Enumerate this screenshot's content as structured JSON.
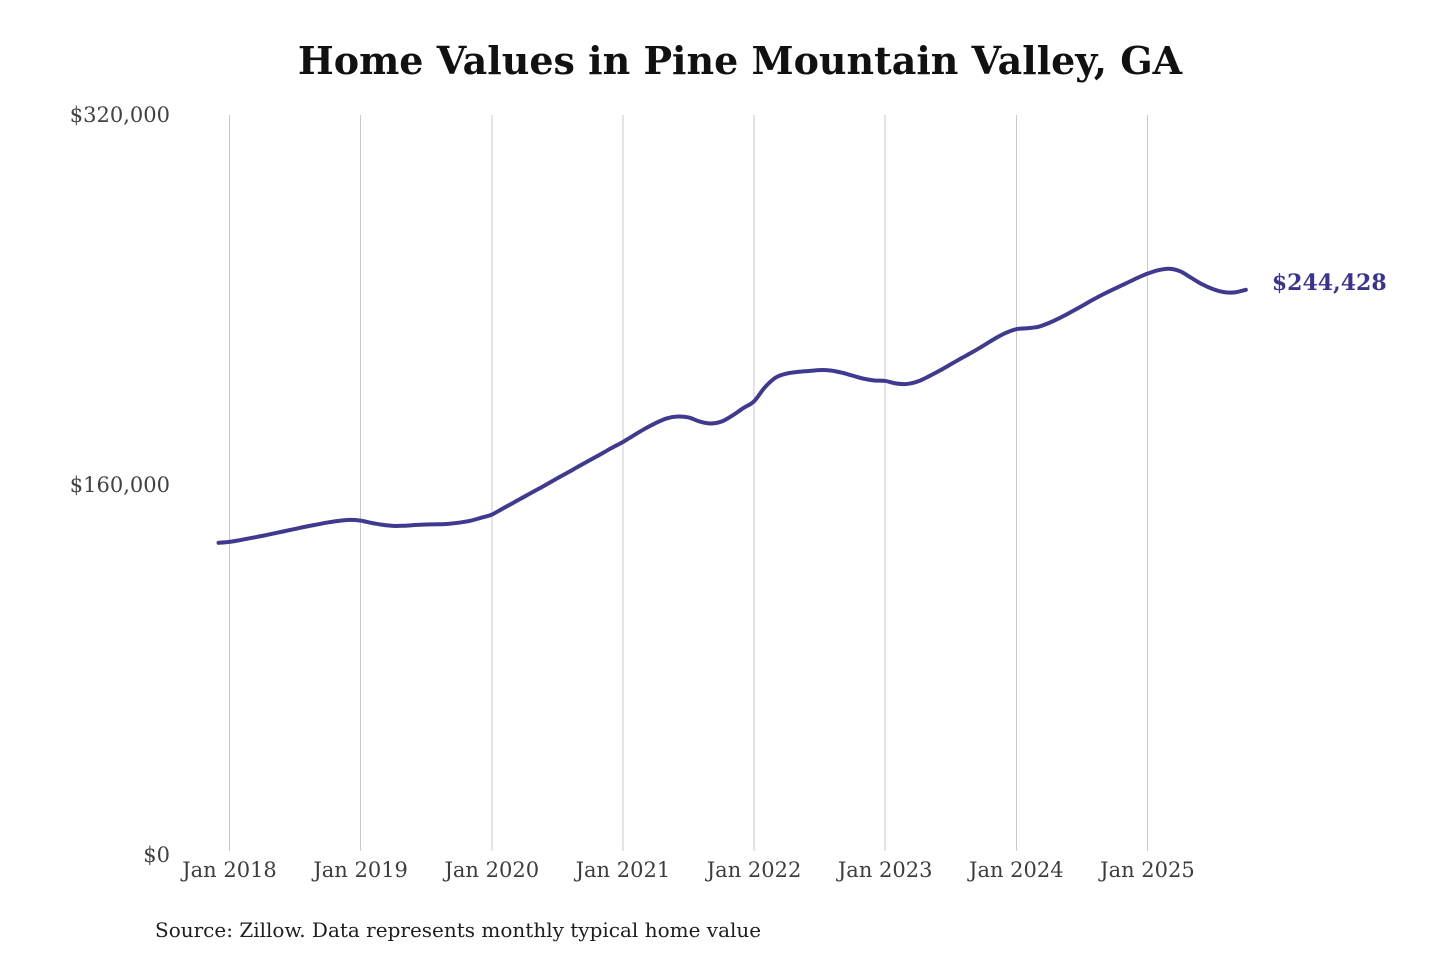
{
  "chart_data": {
    "type": "line",
    "title": "Home Values in Pine Mountain Valley, GA",
    "source_note": "Source: Zillow. Data represents monthly typical home value",
    "end_label": "$244,428",
    "latest_value": 244428,
    "xlabel": "",
    "ylabel": "",
    "ylim": [
      0,
      320000
    ],
    "grid": "vertical",
    "legend": "none",
    "y_ticks": [
      {
        "value": 0,
        "label": "$0"
      },
      {
        "value": 160000,
        "label": "$160,000"
      },
      {
        "value": 320000,
        "label": "$320,000"
      }
    ],
    "x_ticks": [
      {
        "year": 2018,
        "label": "Jan 2018"
      },
      {
        "year": 2019,
        "label": "Jan 2019"
      },
      {
        "year": 2020,
        "label": "Jan 2020"
      },
      {
        "year": 2021,
        "label": "Jan 2021"
      },
      {
        "year": 2022,
        "label": "Jan 2022"
      },
      {
        "year": 2023,
        "label": "Jan 2023"
      },
      {
        "year": 2024,
        "label": "Jan 2024"
      },
      {
        "year": 2025,
        "label": "Jan 2025"
      }
    ],
    "series": [
      {
        "name": "Monthly typical home value",
        "frequency": "monthly",
        "start_month": "2017-12",
        "end_month": "2025-10",
        "values": [
          135000,
          135400,
          136200,
          137100,
          138000,
          139000,
          140000,
          141000,
          142000,
          142900,
          143800,
          144500,
          144900,
          144600,
          143600,
          142800,
          142300,
          142400,
          142700,
          142900,
          143000,
          143200,
          143700,
          144500,
          145800,
          147200,
          149800,
          152400,
          155000,
          157600,
          160200,
          162900,
          165500,
          168200,
          170800,
          173400,
          176100,
          178600,
          181500,
          184300,
          186800,
          188800,
          189600,
          189200,
          187500,
          186600,
          187400,
          190000,
          193200,
          196200,
          202300,
          206500,
          208200,
          208900,
          209300,
          209700,
          209500,
          208600,
          207300,
          206000,
          205200,
          205000,
          203900,
          203700,
          204800,
          207000,
          209500,
          212200,
          214900,
          217500,
          220300,
          223200,
          225700,
          227400,
          227800,
          228400,
          230100,
          232300,
          234800,
          237400,
          240100,
          242600,
          244900,
          247100,
          249400,
          251400,
          252900,
          253500,
          252400,
          249600,
          246800,
          244700,
          243400,
          243300,
          244428
        ]
      }
    ]
  },
  "colors": {
    "background": "#ffffff",
    "line": "#3f3a8f",
    "end_label": "#3a3490",
    "grid": "#c9c9c9",
    "title": "#111111",
    "tick_label": "#414141",
    "source": "#1e1e1e"
  }
}
